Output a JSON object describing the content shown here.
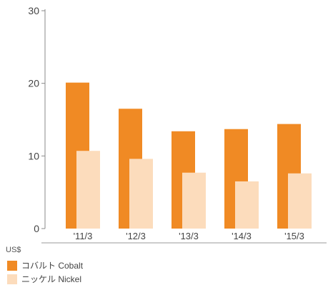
{
  "chart_data": {
    "type": "bar",
    "categories": [
      "'11/3",
      "'12/3",
      "'13/3",
      "'14/3",
      "'15/3"
    ],
    "series": [
      {
        "name": "コバルト Cobalt",
        "values": [
          20.1,
          16.5,
          13.4,
          13.7,
          14.4
        ],
        "color": "#f08a24"
      },
      {
        "name": "ニッケル Nickel",
        "values": [
          10.7,
          9.6,
          7.7,
          6.5,
          7.6
        ],
        "color": "#fcdcbc"
      }
    ],
    "yticks": [
      0,
      10,
      20,
      30
    ],
    "ylim": [
      0,
      30
    ],
    "unit": "US$",
    "grid": false,
    "legend_position": "bottom-left"
  }
}
